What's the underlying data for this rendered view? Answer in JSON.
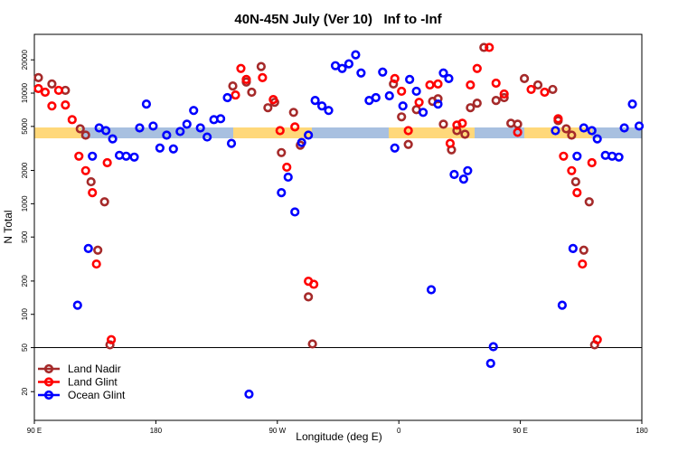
{
  "chart_data": {
    "type": "scatter",
    "title": "40N-45N July (Ver 10)   Inf to -Inf",
    "x_label": "Longitude (deg E)",
    "y_label": "N Total",
    "log_y": true,
    "xlim": [
      90,
      540
    ],
    "xticks": [
      {
        "value": 90,
        "label": "90 E"
      },
      180,
      {
        "value": 270,
        "label": "90 W"
      },
      {
        "value": 360,
        "label": "0"
      },
      {
        "value": 450,
        "label": "90 E"
      },
      {
        "value": 540,
        "label": "180"
      }
    ],
    "ylim": [
      11,
      34000
    ],
    "yticks": [
      20,
      50,
      100,
      200,
      500,
      1000,
      2000,
      5000,
      10000,
      20000
    ],
    "hline": 50,
    "legend": "lower left",
    "series": [
      {
        "name": "Land Nadir",
        "color": "#a52a2a",
        "x": [
          93,
          103,
          113,
          124,
          128,
          132,
          137,
          142,
          146,
          237,
          247,
          251,
          258,
          263,
          268,
          273,
          282,
          287,
          293,
          296,
          356,
          362,
          367,
          373,
          385,
          389,
          393,
          399,
          403,
          409,
          413,
          418,
          423,
          432,
          438,
          443,
          448,
          453,
          463,
          474,
          478,
          484,
          488,
          491,
          497,
          501,
          505
        ],
        "values": [
          13800,
          12100,
          10600,
          4760,
          4170,
          1580,
          380,
          1040,
          53,
          11600,
          12600,
          10200,
          17400,
          7380,
          8260,
          2900,
          6700,
          3380,
          144,
          54,
          12100,
          6100,
          3440,
          7100,
          8430,
          8900,
          5240,
          3070,
          4580,
          4250,
          7380,
          8110,
          25900,
          8590,
          9100,
          5340,
          5240,
          13550,
          11860,
          10800,
          5650,
          4760,
          4170,
          1580,
          380,
          1040,
          53
        ]
      },
      {
        "name": "Land Glint",
        "color": "#ff0000",
        "x": [
          93,
          98,
          103,
          108,
          113,
          118,
          123,
          128,
          133,
          136,
          144,
          147,
          239,
          243,
          247,
          259,
          267,
          272,
          277,
          283,
          293,
          297,
          357,
          362,
          367,
          375,
          383,
          389,
          398,
          403,
          407,
          413,
          418,
          427,
          432,
          438,
          448,
          458,
          468,
          478,
          482,
          488,
          492,
          496,
          503,
          507
        ],
        "values": [
          11000,
          10200,
          7660,
          10600,
          7810,
          5760,
          2690,
          1990,
          1260,
          285,
          2350,
          59,
          9620,
          16700,
          13300,
          13800,
          8750,
          4580,
          2140,
          4950,
          199,
          187,
          13550,
          10400,
          4580,
          8260,
          11860,
          12100,
          3510,
          5140,
          5340,
          11860,
          16700,
          25900,
          12300,
          9820,
          4420,
          10800,
          10200,
          5870,
          2690,
          1990,
          1260,
          285,
          2350,
          59
        ]
      },
      {
        "name": "Ocean Glint",
        "color": "#0000ff",
        "x": [
          122,
          130,
          133,
          138,
          143,
          148,
          153,
          158,
          164,
          168,
          173,
          178,
          183,
          188,
          193,
          198,
          203,
          208,
          213,
          218,
          223,
          228,
          233,
          236,
          249,
          273,
          278,
          283,
          288,
          293,
          298,
          303,
          308,
          313,
          318,
          323,
          328,
          332,
          338,
          343,
          348,
          353,
          357,
          363,
          368,
          373,
          378,
          384,
          389,
          393,
          397,
          401,
          408,
          411,
          428,
          430,
          476,
          481,
          489,
          492,
          497,
          503,
          507,
          513,
          518,
          523,
          527,
          533,
          538
        ],
        "values": [
          121,
          394,
          2690,
          4850,
          4580,
          3860,
          2740,
          2690,
          2640,
          4850,
          7960,
          5040,
          3190,
          4170,
          3130,
          4500,
          5240,
          6970,
          4850,
          4010,
          5760,
          5870,
          9100,
          3510,
          19,
          1260,
          1740,
          843,
          3580,
          4170,
          8590,
          7660,
          6970,
          17700,
          16700,
          18400,
          22200,
          15200,
          8590,
          9100,
          15500,
          9450,
          3190,
          7660,
          13300,
          10400,
          6700,
          167,
          7960,
          15200,
          13550,
          1840,
          1670,
          1990,
          36,
          51,
          4580,
          121,
          394,
          2690,
          4850,
          4580,
          3860,
          2740,
          2690,
          2640,
          4850,
          7960,
          5040
        ]
      }
    ]
  }
}
